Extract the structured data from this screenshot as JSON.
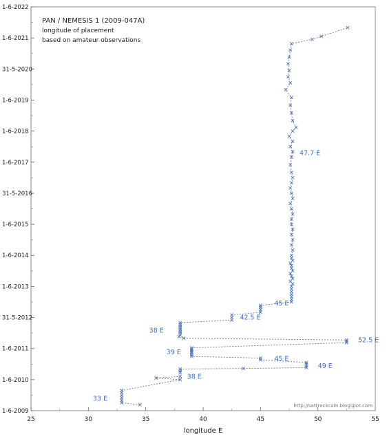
{
  "chart_data": {
    "type": "scatter",
    "title": "PAN / NEMESIS 1  (2009-047A)",
    "subtitle_lines": [
      "longitude of placement",
      "based on amateur observations"
    ],
    "xlabel": "longitude E",
    "ylabel": "",
    "xlim": [
      25,
      55
    ],
    "ylim": [
      "2009-06-01",
      "2022-06-01"
    ],
    "x_ticks": [
      "25",
      "30",
      "35",
      "40",
      "45",
      "50",
      "55"
    ],
    "y_ticks": [
      "1-6-2009",
      "1-6-2010",
      "1-6-2011",
      "31-5-2012",
      "1-6-2013",
      "1-6-2014",
      "1-6-2015",
      "31-5-2016",
      "1-6-2017",
      "1-6-2018",
      "1-6-2019",
      "31-5-2020",
      "1-6-2021",
      "1-6-2022"
    ],
    "credit": "http://sattrackcam.blogspot.com",
    "colors": {
      "points": "#4a73c4",
      "line": "#666666",
      "labels": "#3a6fd0",
      "text": "#222222"
    },
    "series": [
      {
        "points": [
          {
            "x": 34.5,
            "y": "2009-08-10"
          },
          {
            "x": 32.9,
            "y": "2009-09-01"
          },
          {
            "x": 32.9,
            "y": "2009-10-01"
          },
          {
            "x": 32.9,
            "y": "2009-11-01"
          },
          {
            "x": 32.9,
            "y": "2009-12-01"
          },
          {
            "x": 32.9,
            "y": "2010-01-01"
          },
          {
            "x": 32.9,
            "y": "2010-01-25"
          },
          {
            "x": 38.0,
            "y": "2010-06-01"
          },
          {
            "x": 35.9,
            "y": "2010-06-20"
          },
          {
            "x": 38.0,
            "y": "2010-07-10"
          },
          {
            "x": 38.0,
            "y": "2010-08-25"
          },
          {
            "x": 38.0,
            "y": "2010-09-15"
          },
          {
            "x": 38.0,
            "y": "2010-10-05"
          },
          {
            "x": 43.5,
            "y": "2010-10-10"
          },
          {
            "x": 49.0,
            "y": "2010-10-20"
          },
          {
            "x": 49.0,
            "y": "2010-11-10"
          },
          {
            "x": 49.0,
            "y": "2010-12-01"
          },
          {
            "x": 49.0,
            "y": "2010-12-20"
          },
          {
            "x": 45.0,
            "y": "2011-01-20"
          },
          {
            "x": 45.0,
            "y": "2011-02-10"
          },
          {
            "x": 39.0,
            "y": "2011-03-01"
          },
          {
            "x": 39.0,
            "y": "2011-03-20"
          },
          {
            "x": 39.0,
            "y": "2011-04-10"
          },
          {
            "x": 39.0,
            "y": "2011-04-25"
          },
          {
            "x": 39.0,
            "y": "2011-05-10"
          },
          {
            "x": 39.0,
            "y": "2011-05-25"
          },
          {
            "x": 39.0,
            "y": "2011-06-10"
          },
          {
            "x": 52.5,
            "y": "2011-08-10"
          },
          {
            "x": 52.5,
            "y": "2011-08-25"
          },
          {
            "x": 52.5,
            "y": "2011-09-10"
          },
          {
            "x": 38.3,
            "y": "2011-10-01"
          },
          {
            "x": 37.9,
            "y": "2011-10-20"
          },
          {
            "x": 38.0,
            "y": "2011-11-10"
          },
          {
            "x": 38.0,
            "y": "2011-12-01"
          },
          {
            "x": 38.0,
            "y": "2011-12-20"
          },
          {
            "x": 38.0,
            "y": "2012-01-10"
          },
          {
            "x": 38.0,
            "y": "2012-02-01"
          },
          {
            "x": 38.0,
            "y": "2012-02-20"
          },
          {
            "x": 38.0,
            "y": "2012-03-10"
          },
          {
            "x": 38.0,
            "y": "2012-04-01"
          },
          {
            "x": 42.5,
            "y": "2012-05-01"
          },
          {
            "x": 42.5,
            "y": "2012-06-01"
          },
          {
            "x": 42.5,
            "y": "2012-07-01"
          },
          {
            "x": 45.0,
            "y": "2012-08-01"
          },
          {
            "x": 45.0,
            "y": "2012-09-01"
          },
          {
            "x": 45.0,
            "y": "2012-10-01"
          },
          {
            "x": 45.0,
            "y": "2012-10-20"
          },
          {
            "x": 47.7,
            "y": "2012-12-01"
          },
          {
            "x": 47.7,
            "y": "2013-01-01"
          },
          {
            "x": 47.7,
            "y": "2013-02-01"
          },
          {
            "x": 47.7,
            "y": "2013-03-01"
          },
          {
            "x": 47.7,
            "y": "2013-04-01"
          },
          {
            "x": 47.7,
            "y": "2013-05-01"
          },
          {
            "x": 47.7,
            "y": "2013-06-01"
          },
          {
            "x": 47.8,
            "y": "2013-07-01"
          },
          {
            "x": 47.6,
            "y": "2013-08-01"
          },
          {
            "x": 47.8,
            "y": "2013-09-01"
          },
          {
            "x": 47.7,
            "y": "2013-10-01"
          },
          {
            "x": 47.6,
            "y": "2013-11-01"
          },
          {
            "x": 47.8,
            "y": "2013-12-01"
          },
          {
            "x": 47.7,
            "y": "2014-01-01"
          },
          {
            "x": 47.7,
            "y": "2014-02-01"
          },
          {
            "x": 47.6,
            "y": "2014-03-01"
          },
          {
            "x": 47.8,
            "y": "2014-04-01"
          },
          {
            "x": 47.7,
            "y": "2014-05-01"
          },
          {
            "x": 47.7,
            "y": "2014-06-01"
          },
          {
            "x": 47.8,
            "y": "2014-08-01"
          },
          {
            "x": 47.7,
            "y": "2014-10-01"
          },
          {
            "x": 47.8,
            "y": "2014-12-01"
          },
          {
            "x": 47.7,
            "y": "2015-02-01"
          },
          {
            "x": 47.8,
            "y": "2015-04-01"
          },
          {
            "x": 47.7,
            "y": "2015-06-01"
          },
          {
            "x": 47.7,
            "y": "2015-08-01"
          },
          {
            "x": 47.8,
            "y": "2015-10-01"
          },
          {
            "x": 47.7,
            "y": "2015-12-01"
          },
          {
            "x": 47.6,
            "y": "2016-02-01"
          },
          {
            "x": 47.8,
            "y": "2016-04-01"
          },
          {
            "x": 47.7,
            "y": "2016-06-01"
          },
          {
            "x": 47.6,
            "y": "2016-08-01"
          },
          {
            "x": 47.7,
            "y": "2016-10-01"
          },
          {
            "x": 47.8,
            "y": "2016-12-01"
          },
          {
            "x": 47.7,
            "y": "2017-02-01"
          },
          {
            "x": 47.6,
            "y": "2017-05-01"
          },
          {
            "x": 47.7,
            "y": "2017-08-01"
          },
          {
            "x": 47.8,
            "y": "2017-10-01"
          },
          {
            "x": 47.6,
            "y": "2017-12-01"
          },
          {
            "x": 47.8,
            "y": "2018-02-01"
          },
          {
            "x": 47.5,
            "y": "2018-04-01"
          },
          {
            "x": 47.8,
            "y": "2018-06-01"
          },
          {
            "x": 48.1,
            "y": "2018-07-15"
          },
          {
            "x": 47.8,
            "y": "2018-10-01"
          },
          {
            "x": 47.7,
            "y": "2019-01-01"
          },
          {
            "x": 47.6,
            "y": "2019-04-01"
          },
          {
            "x": 47.7,
            "y": "2019-07-01"
          },
          {
            "x": 47.2,
            "y": "2019-10-01"
          },
          {
            "x": 47.6,
            "y": "2019-12-20"
          },
          {
            "x": 47.4,
            "y": "2020-03-01"
          },
          {
            "x": 47.5,
            "y": "2020-05-15"
          },
          {
            "x": 47.4,
            "y": "2020-08-01"
          },
          {
            "x": 47.5,
            "y": "2020-10-20"
          },
          {
            "x": 47.6,
            "y": "2021-01-10"
          },
          {
            "x": 47.7,
            "y": "2021-03-25"
          },
          {
            "x": 49.5,
            "y": "2021-05-15"
          },
          {
            "x": 50.3,
            "y": "2021-06-20"
          },
          {
            "x": 52.6,
            "y": "2021-09-30"
          }
        ]
      }
    ],
    "annotations": [
      {
        "text": "47.7 E",
        "x": 48.4,
        "y": "2017-09-15"
      },
      {
        "text": "45 E",
        "x": 46.2,
        "y": "2012-11-15"
      },
      {
        "text": "42.5 E",
        "x": 43.2,
        "y": "2012-06-01"
      },
      {
        "text": "38 E",
        "x": 35.3,
        "y": "2012-01-01"
      },
      {
        "text": "52.5 E",
        "x": 53.5,
        "y": "2011-09-10"
      },
      {
        "text": "39 E",
        "x": 36.8,
        "y": "2011-04-20"
      },
      {
        "text": "45 E",
        "x": 46.2,
        "y": "2011-02-01"
      },
      {
        "text": "49 E",
        "x": 50.0,
        "y": "2010-11-10"
      },
      {
        "text": "38 E",
        "x": 38.6,
        "y": "2010-07-05"
      },
      {
        "text": "33 E",
        "x": 30.4,
        "y": "2009-10-20"
      }
    ]
  }
}
